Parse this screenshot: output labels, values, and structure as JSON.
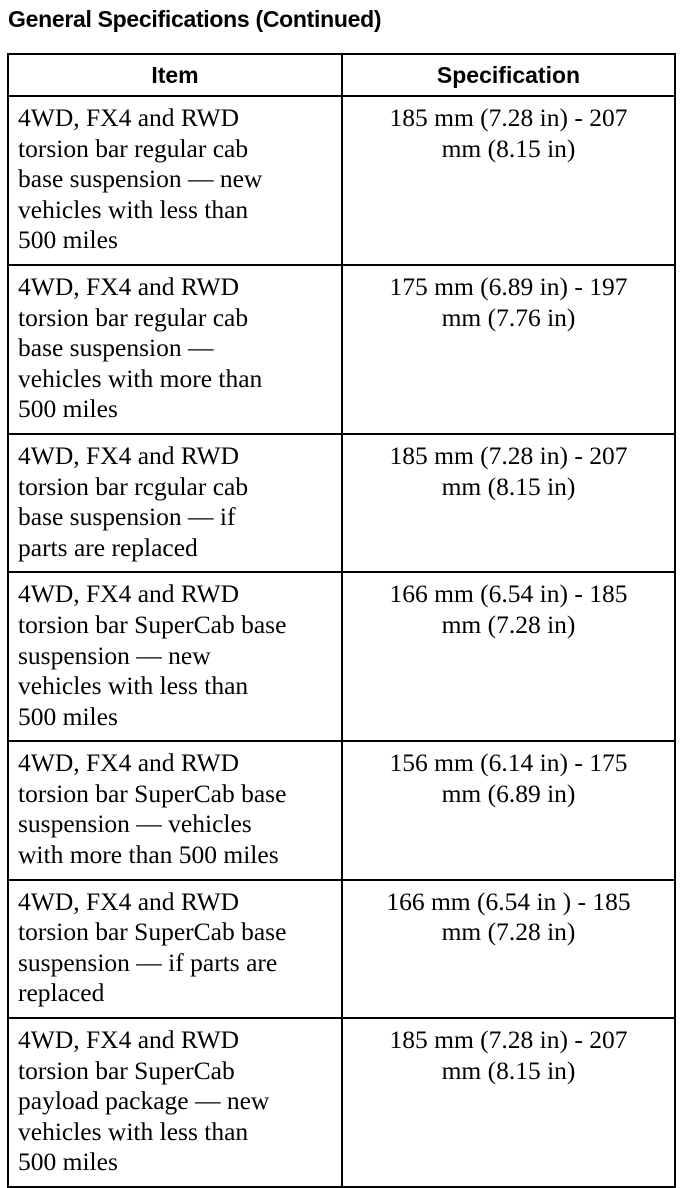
{
  "title": "General Specifications (Continued)",
  "columns": [
    "Item",
    "Specification"
  ],
  "rows": [
    {
      "item": [
        "4WD, FX4 and RWD",
        "torsion bar regular cab",
        "base suspension — new",
        "vehicles with less than",
        "500 miles"
      ],
      "spec": [
        "185 mm (7.28 in) - 207",
        "mm (8.15 in)"
      ]
    },
    {
      "item": [
        "4WD, FX4 and RWD",
        "torsion bar regular cab",
        "base suspension —",
        "vehicles with more than",
        "500 miles"
      ],
      "spec": [
        "175 mm (6.89 in) - 197",
        "mm (7.76 in)"
      ]
    },
    {
      "item": [
        "4WD, FX4 and RWD",
        "torsion bar rcgular cab",
        "base suspension — if",
        "parts are replaced"
      ],
      "spec": [
        "185 mm (7.28 in) - 207",
        "mm (8.15 in)"
      ]
    },
    {
      "item": [
        "4WD, FX4 and RWD",
        "torsion bar SuperCab base",
        "suspension — new",
        "vehicles with less than",
        "500 miles"
      ],
      "spec": [
        "166 mm (6.54 in) - 185",
        "mm (7.28 in)"
      ]
    },
    {
      "item": [
        "4WD, FX4 and RWD",
        "torsion bar SuperCab base",
        "suspension — vehicles",
        "with more than 500 miles"
      ],
      "spec": [
        "156 mm (6.14 in) - 175",
        "mm (6.89 in)"
      ]
    },
    {
      "item": [
        "4WD, FX4 and RWD",
        "torsion bar SuperCab base",
        "suspension — if parts are",
        "replaced"
      ],
      "spec": [
        "166 mm (6.54 in ) - 185",
        "mm (7.28 in)"
      ]
    },
    {
      "item": [
        "4WD, FX4 and RWD",
        "torsion bar SuperCab",
        "payload package — new",
        "vehicles with less than",
        "500 miles"
      ],
      "spec": [
        "185 mm (7.28 in) - 207",
        "mm (8.15 in)"
      ]
    }
  ]
}
